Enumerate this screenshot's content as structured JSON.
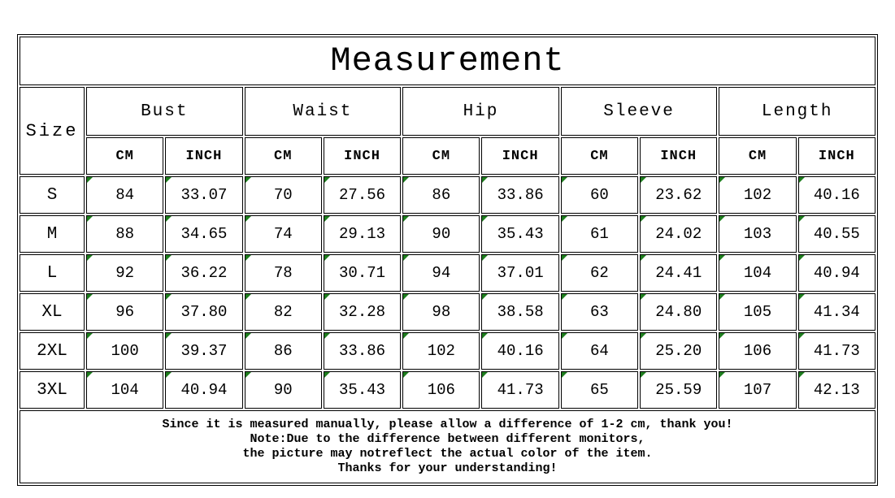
{
  "title": "Measurement",
  "header": {
    "size_label": "Size",
    "groups": [
      "Bust",
      "Waist",
      "Hip",
      "Sleeve",
      "Length"
    ],
    "unit_labels": [
      "CM",
      "INCH"
    ]
  },
  "rows": [
    {
      "size": "S",
      "values": [
        "84",
        "33.07",
        "70",
        "27.56",
        "86",
        "33.86",
        "60",
        "23.62",
        "102",
        "40.16"
      ]
    },
    {
      "size": "M",
      "values": [
        "88",
        "34.65",
        "74",
        "29.13",
        "90",
        "35.43",
        "61",
        "24.02",
        "103",
        "40.55"
      ]
    },
    {
      "size": "L",
      "values": [
        "92",
        "36.22",
        "78",
        "30.71",
        "94",
        "37.01",
        "62",
        "24.41",
        "104",
        "40.94"
      ]
    },
    {
      "size": "XL",
      "values": [
        "96",
        "37.80",
        "82",
        "32.28",
        "98",
        "38.58",
        "63",
        "24.80",
        "105",
        "41.34"
      ]
    },
    {
      "size": "2XL",
      "values": [
        "100",
        "39.37",
        "86",
        "33.86",
        "102",
        "40.16",
        "64",
        "25.20",
        "106",
        "41.73"
      ]
    },
    {
      "size": "3XL",
      "values": [
        "104",
        "40.94",
        "90",
        "35.43",
        "106",
        "41.73",
        "65",
        "25.59",
        "107",
        "42.13"
      ]
    }
  ],
  "footer": {
    "lines": [
      "Since it is measured manually, please allow a difference of 1-2 cm, thank you!",
      "Note:Due to the difference between different monitors,",
      "the picture may notreflect the actual color of the item.",
      "Thanks for your understanding!"
    ]
  },
  "colors": {
    "border": "#000000",
    "text": "#000000",
    "background": "#ffffff",
    "cell_marker_green": "#1e7d1e"
  }
}
